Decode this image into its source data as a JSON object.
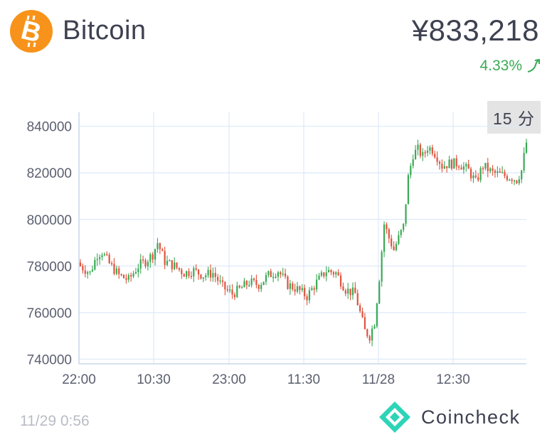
{
  "header": {
    "coin_name": "Bitcoin",
    "coin_icon": "bitcoin-logo-icon",
    "price": "¥833,218",
    "change_pct": "4.33%",
    "change_icon": "trend-up-icon",
    "change_color": "#3aaa55",
    "brand_color": "#f7931a"
  },
  "range_button": {
    "label": "15 分"
  },
  "chart_data": {
    "type": "candlestick",
    "y_ticks": [
      "840000",
      "820000",
      "800000",
      "780000",
      "760000",
      "740000"
    ],
    "y_range": [
      738000,
      846000
    ],
    "x_ticks": [
      "22:00",
      "10:30",
      "23:00",
      "11:30",
      "11/28",
      "12:30"
    ],
    "grid": true,
    "colors": {
      "up": "#3aaa55",
      "down": "#e0533e",
      "grid": "#dce9f8",
      "axis": "#c8d8ea"
    },
    "close_path": [
      [
        0,
        780000
      ],
      [
        4,
        777000
      ],
      [
        7,
        785000
      ],
      [
        9,
        786000
      ],
      [
        12,
        781000
      ],
      [
        16,
        776000
      ],
      [
        20,
        774000
      ],
      [
        24,
        780000
      ],
      [
        27,
        782000
      ],
      [
        30,
        785000
      ],
      [
        32,
        790000
      ],
      [
        35,
        782000
      ],
      [
        39,
        780000
      ],
      [
        43,
        777000
      ],
      [
        47,
        778000
      ],
      [
        51,
        776000
      ],
      [
        55,
        777000
      ],
      [
        59,
        771000
      ],
      [
        63,
        768000
      ],
      [
        66,
        770000
      ],
      [
        70,
        773000
      ],
      [
        74,
        772000
      ],
      [
        78,
        776000
      ],
      [
        82,
        778000
      ],
      [
        86,
        772000
      ],
      [
        90,
        770000
      ],
      [
        94,
        767000
      ],
      [
        98,
        773000
      ],
      [
        102,
        778000
      ],
      [
        106,
        777000
      ],
      [
        110,
        770000
      ],
      [
        114,
        768000
      ],
      [
        116,
        760000
      ],
      [
        118,
        752000
      ],
      [
        120,
        750000
      ],
      [
        122,
        756000
      ],
      [
        124,
        775000
      ],
      [
        126,
        798000
      ],
      [
        128,
        792000
      ],
      [
        130,
        787000
      ],
      [
        132,
        792000
      ],
      [
        134,
        797000
      ],
      [
        136,
        818000
      ],
      [
        138,
        828000
      ],
      [
        140,
        830000
      ],
      [
        142,
        827000
      ],
      [
        144,
        831000
      ],
      [
        146,
        830000
      ],
      [
        148,
        827000
      ],
      [
        150,
        823000
      ],
      [
        153,
        824000
      ],
      [
        157,
        824000
      ],
      [
        161,
        821000
      ],
      [
        164,
        816000
      ],
      [
        167,
        823000
      ],
      [
        171,
        820000
      ],
      [
        175,
        819000
      ],
      [
        179,
        818000
      ],
      [
        181,
        817000
      ],
      [
        183,
        821000
      ],
      [
        185,
        833000
      ]
    ]
  },
  "footer": {
    "timestamp": "11/29 0:56",
    "brand_name": "Coincheck",
    "brand_icon": "coincheck-logo-icon",
    "brand_icon_color": "#2ed4b8"
  }
}
